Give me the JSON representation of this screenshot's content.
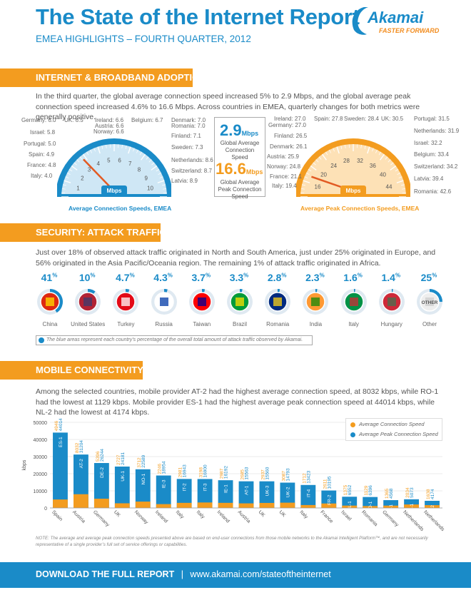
{
  "header": {
    "title": "The State of the Internet Report",
    "subtitle": "EMEA HIGHLIGHTS – FOURTH QUARTER, 2012",
    "logo_text": "Akamai",
    "logo_tagline": "FASTER FORWARD"
  },
  "sections": {
    "adoption": {
      "heading": "INTERNET & BROADBAND ADOPTION",
      "text": "In the third quarter, the global average connection speed increased 5% to 2.9 Mbps, and the global average peak connection speed increased 4.6% to 16.6 Mbps. Across countries in EMEA, quarterly changes for both metrics were generally positive."
    },
    "security": {
      "heading": "SECURITY: ATTACK TRAFFIC",
      "text": "Just over 18% of observed attack traffic originated in North and South America, just under 25% originated in Europe, and 56% originated in the Asia Pacific/Oceania region. The remaining 1% of attack traffic originated in Africa.",
      "note": "The blue areas represent each country’s percentage of the overall total amount of attack traffic observed by Akamai."
    },
    "mobile": {
      "heading": "MOBILE CONNECTIVITY",
      "text": "Among the selected countries, mobile provider AT-2 had the highest average connection speed, at 8032 kbps, while RO-1 had the lowest at 1129 kbps. Mobile provider ES-1 had the highest average peak connection speed at 44014 kbps, while NL-2 had the lowest at 4174 kbps.",
      "note": "NOTE: The average and average peak connection speeds presented above are based on end-user connections from those mobile networks to the Akamai Intelligent Platform™, and are not necessarily representative of a single provider’s full set of service offerings or capabilities."
    }
  },
  "avg_gauge": {
    "title": "Average Connection Speeds, EMEA",
    "unit": "Mbps",
    "ticks": [
      "1",
      "2",
      "3",
      "4",
      "5",
      "6",
      "7",
      "8",
      "9",
      "10"
    ],
    "labels": [
      "Germany: 6.0",
      "UK: 6.5",
      "Ireland: 6.6",
      "Austria: 6.6",
      "Norway: 6.6",
      "Belgium: 6.7",
      "Denmark: 7.0",
      "Romania: 7.0",
      "Israel: 5.8",
      "Portugal: 5.0",
      "Spain: 4.9",
      "France: 4.8",
      "Italy: 4.0",
      "Finland: 7.1",
      "Sweden: 7.3",
      "Netherlands: 8.6",
      "Switzerland: 8.7",
      "Latvia: 8.9"
    ],
    "needle_value": 2.9
  },
  "peak_gauge": {
    "title": "Average Peak Connection Speeds, EMEA",
    "unit": "Mbps",
    "ticks": [
      "16",
      "20",
      "24",
      "28",
      "32",
      "36",
      "40",
      "44"
    ],
    "labels": [
      "Ireland: 27.0",
      "Germany: 27.0",
      "Spain: 27.8",
      "Sweden: 28.4",
      "UK: 30.5",
      "Portugal: 31.5",
      "Netherlands: 31.9",
      "Finland: 26.5",
      "Denmark: 26.1",
      "Austria: 25.9",
      "Norway: 24.8",
      "France: 21.1",
      "Italy: 19.4",
      "Israel: 32.2",
      "Belgium: 33.4",
      "Switzerland: 34.2",
      "Latvia: 39.4",
      "Romania: 42.6"
    ],
    "needle_value": 16.6
  },
  "kpis": {
    "avg_value": "2.9",
    "avg_unit": "Mbps",
    "avg_caption": "Global Average Connection Speed",
    "peak_value": "16.6",
    "peak_unit": "Mbps",
    "peak_caption": "Global Average Peak Connection Speed"
  },
  "attack": [
    {
      "country": "China",
      "pct": "41",
      "value": 41
    },
    {
      "country": "United States",
      "pct": "10",
      "value": 10
    },
    {
      "country": "Turkey",
      "pct": "4.7",
      "value": 4.7
    },
    {
      "country": "Russia",
      "pct": "4.3",
      "value": 4.3
    },
    {
      "country": "Taiwan",
      "pct": "3.7",
      "value": 3.7
    },
    {
      "country": "Brazil",
      "pct": "3.3",
      "value": 3.3
    },
    {
      "country": "Romania",
      "pct": "2.8",
      "value": 2.8
    },
    {
      "country": "India",
      "pct": "2.3",
      "value": 2.3
    },
    {
      "country": "Italy",
      "pct": "1.6",
      "value": 1.6
    },
    {
      "country": "Hungary",
      "pct": "1.4",
      "value": 1.4
    },
    {
      "country": "Other",
      "pct": "25",
      "value": 25,
      "inner": "OTHER"
    }
  ],
  "pct_sign": "%",
  "chart_data": {
    "type": "bar",
    "ylabel": "kbps",
    "ylim": [
      0,
      50000
    ],
    "yticks": [
      "0",
      "10000",
      "20000",
      "30000",
      "40000",
      "50000"
    ],
    "categories": [
      "Spain",
      "Austria",
      "Germany",
      "UK",
      "Norway",
      "Ireland",
      "Italy",
      "Italy",
      "Ireland",
      "Austria",
      "UK",
      "UK",
      "Italy",
      "France",
      "Israel",
      "Romania",
      "Germany",
      "Netherlands",
      "Netherlands"
    ],
    "providers": [
      "ES-1",
      "AT-2",
      "DE-2",
      "UK-1",
      "NO-1",
      "IE-3",
      "IT-2",
      "IT-3",
      "IE-1",
      "AT-1",
      "UK-3",
      "UK-2",
      "IT-4",
      "FR-2",
      "IL-1",
      "RO-1",
      "DE-1",
      "NL-1",
      "NL-2"
    ],
    "series": [
      {
        "name": "Average Connection Speed",
        "color": "#f39c1f",
        "values": [
          4946,
          8032,
          5396,
          2727,
          3712,
          2246,
          2981,
          3198,
          2987,
          2685,
          2937,
          3087,
          1712,
          2611,
          1375,
          1129,
          1365,
          2034,
          1638
        ]
      },
      {
        "name": "Average Peak Connection Speed",
        "color": "#1a8bc8",
        "values": [
          44014,
          31204,
          26244,
          24181,
          22589,
          18954,
          16943,
          16900,
          16192,
          15563,
          15560,
          14793,
          13423,
          10195,
          6552,
          6396,
          4568,
          5073,
          4174
        ]
      }
    ]
  },
  "footer": {
    "cta": "DOWNLOAD THE FULL REPORT",
    "sep": "|",
    "url": "www.akamai.com/stateoftheinternet"
  }
}
